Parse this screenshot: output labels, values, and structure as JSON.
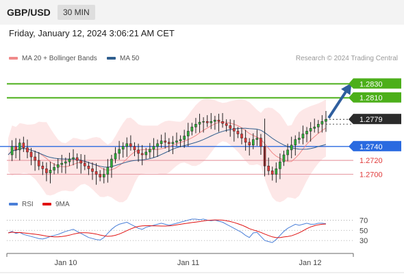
{
  "header": {
    "pair": "GBP/USD",
    "timeframe": "30 MIN"
  },
  "datetime": "Friday, January 12, 2024 3:06:21 AM CET",
  "legend": {
    "ma20_label": "MA 20 + Bollinger Bands",
    "ma20_color": "#f08a8a",
    "ma50_label": "MA 50",
    "ma50_color": "#2f5e8e"
  },
  "credit": "Research © 2024 Trading Central",
  "rsi_legend": {
    "rsi_label": "RSI",
    "rsi_color": "#4a7fd8",
    "ma_label": "9MA",
    "ma_color": "#e01010"
  },
  "chart_data": {
    "type": "candlestick",
    "ylim": [
      1.2665,
      1.2855
    ],
    "rsi_ylim": [
      10,
      80
    ],
    "x_ticks": [
      "Jan 10",
      "Jan 11",
      "Jan 12"
    ],
    "rsi_ticks": [
      70,
      50,
      30
    ],
    "current_price": "1.2779",
    "levels": [
      {
        "value": 1.283,
        "label": "1.2830",
        "kind": "resistance"
      },
      {
        "value": 1.281,
        "label": "1.2810",
        "kind": "resistance"
      },
      {
        "value": 1.274,
        "label": "1.2740",
        "kind": "pivot"
      },
      {
        "value": 1.272,
        "label": "1.2720",
        "kind": "support"
      },
      {
        "value": 1.27,
        "label": "1.2700",
        "kind": "support"
      }
    ],
    "forecast_arrow": {
      "from": 1.2779,
      "to": 1.283
    },
    "price_path": [
      1.2728,
      1.274,
      1.2735,
      1.2745,
      1.2738,
      1.2732,
      1.2725,
      1.272,
      1.2712,
      1.2708,
      1.2702,
      1.2706,
      1.271,
      1.2714,
      1.2716,
      1.2718,
      1.2722,
      1.2724,
      1.272,
      1.2716,
      1.2712,
      1.2708,
      1.2704,
      1.27,
      1.2696,
      1.27,
      1.271,
      1.2722,
      1.273,
      1.2736,
      1.274,
      1.2744,
      1.274,
      1.2735,
      1.273,
      1.2728,
      1.2732,
      1.2736,
      1.274,
      1.2744,
      1.2748,
      1.2746,
      1.2744,
      1.2746,
      1.2748,
      1.275,
      1.2755,
      1.2762,
      1.2768,
      1.2772,
      1.2775,
      1.2776,
      1.2774,
      1.2776,
      1.2778,
      1.2776,
      1.2773,
      1.277,
      1.2766,
      1.2762,
      1.2758,
      1.2752,
      1.2746,
      1.2742,
      1.275,
      1.2752,
      1.274,
      1.2712,
      1.2705,
      1.27,
      1.2708,
      1.2718,
      1.2728,
      1.2735,
      1.2742,
      1.275,
      1.2752,
      1.2758,
      1.2762,
      1.2766,
      1.2768,
      1.2772,
      1.2776,
      1.2779
    ],
    "rsi": [
      45,
      48,
      44,
      46,
      42,
      40,
      38,
      36,
      34,
      33,
      35,
      38,
      40,
      42,
      45,
      48,
      50,
      52,
      48,
      44,
      40,
      36,
      34,
      32,
      31,
      36,
      44,
      52,
      58,
      62,
      64,
      66,
      62,
      58,
      54,
      52,
      56,
      58,
      60,
      62,
      64,
      62,
      60,
      62,
      64,
      66,
      68,
      70,
      72,
      72,
      71,
      72,
      70,
      69,
      70,
      68,
      66,
      62,
      58,
      54,
      50,
      46,
      40,
      36,
      45,
      46,
      38,
      30,
      28,
      26,
      32,
      40,
      48,
      54,
      58,
      62,
      60,
      62,
      64,
      62,
      62,
      64,
      64,
      63
    ]
  }
}
